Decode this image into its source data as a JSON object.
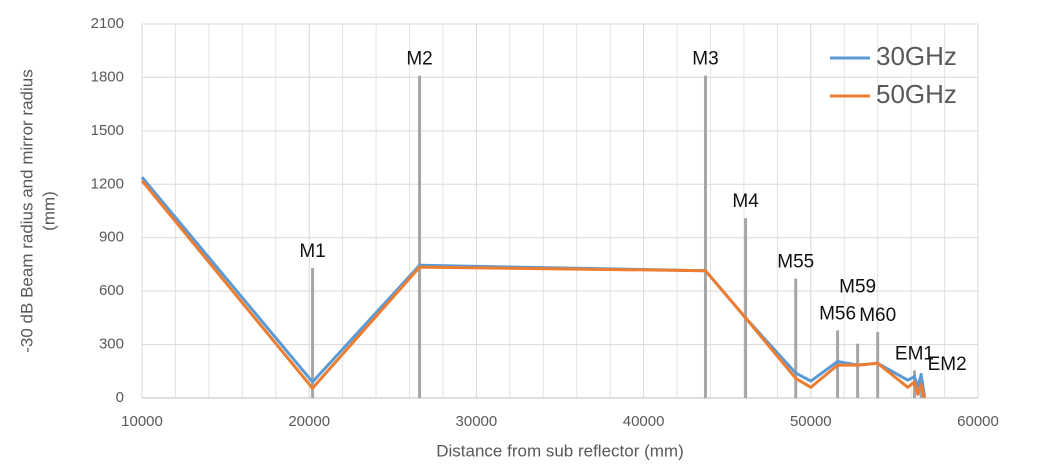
{
  "chart_data": {
    "type": "line",
    "xlabel": "Distance from sub reflector (mm)",
    "ylabel": [
      "-30 dB Beam radius and mirror radius",
      "(mm)"
    ],
    "xlim": [
      10000,
      60000
    ],
    "xticks": [
      10000,
      20000,
      30000,
      40000,
      50000,
      60000
    ],
    "xminorticks": [
      12000,
      14000,
      16000,
      18000,
      22000,
      24000,
      26000,
      28000,
      32000,
      34000,
      36000,
      38000,
      42000,
      44000,
      46000,
      48000,
      52000,
      54000,
      56000,
      58000
    ],
    "ylim": [
      0,
      2100
    ],
    "yticks": [
      0,
      300,
      600,
      900,
      1200,
      1500,
      1800,
      2100
    ],
    "grid": true,
    "legend": "upper right",
    "x": [
      10000,
      20200,
      26600,
      43700,
      46100,
      49100,
      50000,
      51600,
      52800,
      54000,
      55800,
      56200,
      56400,
      56600,
      56800
    ],
    "series": [
      {
        "name": "30GHz",
        "color": "#5b9bd5",
        "values": [
          1240,
          90,
          745,
          715,
          450,
          140,
          95,
          205,
          185,
          195,
          100,
          120,
          60,
          130,
          10
        ]
      },
      {
        "name": "50GHz",
        "color": "#ed7d31",
        "values": [
          1220,
          55,
          735,
          715,
          450,
          110,
          60,
          185,
          185,
          195,
          60,
          90,
          20,
          75,
          0
        ]
      }
    ],
    "mirror_color": "#a6a6a6",
    "mirrors": [
      {
        "name": "M1",
        "x": 20200,
        "height": 730
      },
      {
        "name": "M2",
        "x": 26600,
        "height": 1810
      },
      {
        "name": "M3",
        "x": 43700,
        "height": 1810
      },
      {
        "name": "M4",
        "x": 46100,
        "height": 1010
      },
      {
        "name": "M55",
        "x": 49100,
        "height": 670
      },
      {
        "name": "M56",
        "x": 51600,
        "height": 380
      },
      {
        "name": "M59",
        "x": 52800,
        "height": 305
      },
      {
        "name": "M60",
        "x": 54000,
        "height": 370
      },
      {
        "name": "EM1",
        "x": 56200,
        "height": 155
      },
      {
        "name": "EM2",
        "x": 56600,
        "height": 140
      }
    ]
  }
}
